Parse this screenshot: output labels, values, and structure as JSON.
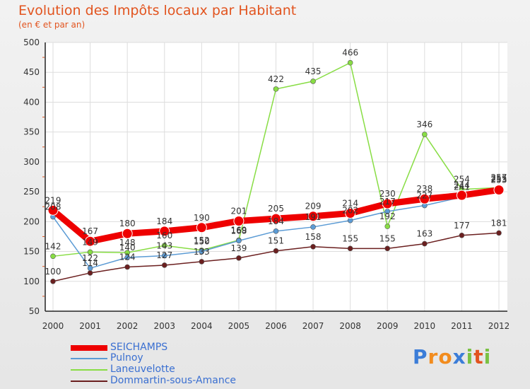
{
  "title": "Evolution des Impôts locaux par Habitant",
  "subtitle": "(en € et par an)",
  "logo_text": "Proxiti",
  "chart_data": {
    "type": "line",
    "title": "Evolution des Impôts locaux par Habitant",
    "subtitle": "(en € et par an)",
    "xlabel": "",
    "ylabel": "",
    "ylim": [
      50,
      500
    ],
    "yticks": [
      "50",
      "100",
      "150",
      "200",
      "250",
      "300",
      "350",
      "400",
      "450",
      "500"
    ],
    "categories": [
      "2000",
      "2001",
      "2002",
      "2003",
      "2004",
      "2005",
      "2006",
      "2007",
      "2008",
      "2009",
      "2010",
      "2011",
      "2012"
    ],
    "series": [
      {
        "name": "SEICHAMPS",
        "color": "#ee0000",
        "values": [
          219,
          167,
          180,
          184,
          190,
          201,
          205,
          209,
          214,
          230,
          238,
          244,
          253
        ]
      },
      {
        "name": "Pulnoy",
        "color": "#5b9bd5",
        "values": [
          208,
          122,
          140,
          143,
          150,
          168,
          184,
          191,
          202,
          217,
          227,
          241,
          255
        ]
      },
      {
        "name": "Laneuvelotte",
        "color": "#88dd44",
        "values": [
          142,
          149,
          148,
          160,
          152,
          169,
          422,
          435,
          466,
          192,
          346,
          254,
          257
        ]
      },
      {
        "name": "Dommartin-sous-Amance",
        "color": "#6b1f1f",
        "values": [
          100,
          114,
          124,
          127,
          133,
          139,
          151,
          158,
          155,
          155,
          163,
          177,
          181
        ]
      }
    ]
  }
}
